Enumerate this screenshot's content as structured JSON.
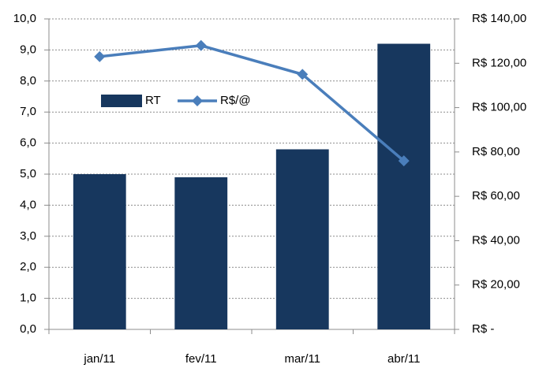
{
  "chart_data": {
    "type": "bar",
    "categories": [
      "jan/11",
      "fev/11",
      "mar/11",
      "abr/11"
    ],
    "series": [
      {
        "name": "RT",
        "type": "bar",
        "color": "#17375e",
        "values": [
          5.0,
          4.9,
          5.8,
          9.2
        ]
      },
      {
        "name": "R$/@",
        "type": "line",
        "axis": "y2",
        "color": "#4a7ebb",
        "values": [
          123,
          128,
          115,
          76
        ]
      }
    ],
    "ylim": [
      0,
      10
    ],
    "yticks": [
      {
        "value": 0,
        "label": "0,0"
      },
      {
        "value": 1,
        "label": "1,0"
      },
      {
        "value": 2,
        "label": "2,0"
      },
      {
        "value": 3,
        "label": "3,0"
      },
      {
        "value": 4,
        "label": "4,0"
      },
      {
        "value": 5,
        "label": "5,0"
      },
      {
        "value": 6,
        "label": "6,0"
      },
      {
        "value": 7,
        "label": "7,0"
      },
      {
        "value": 8,
        "label": "8,0"
      },
      {
        "value": 9,
        "label": "9,0"
      },
      {
        "value": 10,
        "label": "10,0"
      }
    ],
    "y2lim": [
      0,
      140
    ],
    "y2ticks": [
      {
        "value": 0,
        "label": "R$ -"
      },
      {
        "value": 20,
        "label": "R$ 20,00"
      },
      {
        "value": 40,
        "label": "R$ 40,00"
      },
      {
        "value": 60,
        "label": "R$ 60,00"
      },
      {
        "value": 80,
        "label": "R$ 80,00"
      },
      {
        "value": 100,
        "label": "R$ 100,00"
      },
      {
        "value": 120,
        "label": "R$ 120,00"
      },
      {
        "value": 140,
        "label": "R$ 140,00"
      }
    ],
    "grid": true
  }
}
